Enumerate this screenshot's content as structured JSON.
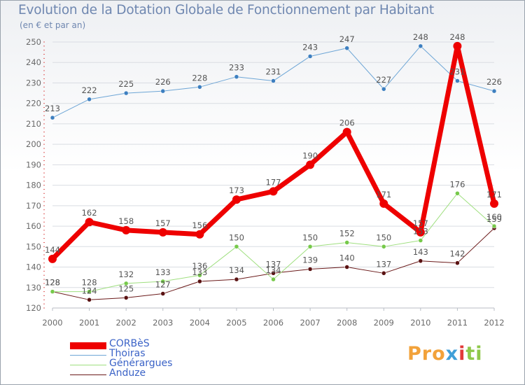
{
  "title": "Evolution de la Dotation Globale de Fonctionnement par Habitant",
  "subtitle": "(en € et par an)",
  "logo": {
    "parts": [
      "Pro",
      "x",
      "i",
      "ti"
    ]
  },
  "colors": {
    "axis_text": "#6a6a6a",
    "grid": "#d9dde2",
    "title": "#6f87b0",
    "legend_text": "#3b63c7"
  },
  "chart_data": {
    "type": "line",
    "title": "Evolution de la Dotation Globale de Fonctionnement par Habitant",
    "xlabel": "",
    "ylabel": "(en € et par an)",
    "ylim": [
      120,
      250
    ],
    "yticks": [
      120,
      130,
      140,
      150,
      160,
      170,
      180,
      190,
      200,
      210,
      220,
      230,
      240,
      250
    ],
    "categories": [
      "2000",
      "2001",
      "2002",
      "2003",
      "2004",
      "2005",
      "2006",
      "2007",
      "2008",
      "2009",
      "2010",
      "2011",
      "2012"
    ],
    "series": [
      {
        "name": "Anduze",
        "color": "#6b1a1a",
        "marker": "#5a1212",
        "width": 1,
        "dot": 3,
        "values": [
          128,
          124,
          125,
          127,
          133,
          134,
          137,
          139,
          140,
          137,
          143,
          142,
          159
        ]
      },
      {
        "name": "Générargues",
        "color": "#9fdf7f",
        "marker": "#76c94a",
        "width": 1,
        "dot": 3,
        "values": [
          128,
          128,
          132,
          133,
          136,
          150,
          134,
          150,
          152,
          150,
          153,
          176,
          160
        ]
      },
      {
        "name": "Thoiras",
        "color": "#6ea6d6",
        "marker": "#3d7fc0",
        "width": 1,
        "dot": 3,
        "values": [
          213,
          222,
          225,
          226,
          228,
          233,
          231,
          243,
          247,
          227,
          248,
          231,
          226
        ]
      },
      {
        "name": "CORBèS",
        "color": "#ee0000",
        "marker": "#ee0000",
        "width": 7,
        "dot": 6,
        "values": [
          144,
          162,
          158,
          157,
          156,
          173,
          177,
          190,
          206,
          171,
          157,
          248,
          171
        ]
      }
    ],
    "legend_order": [
      "CORBèS",
      "Thoiras",
      "Générargues",
      "Anduze"
    ],
    "legend_position": "bottom-left"
  }
}
